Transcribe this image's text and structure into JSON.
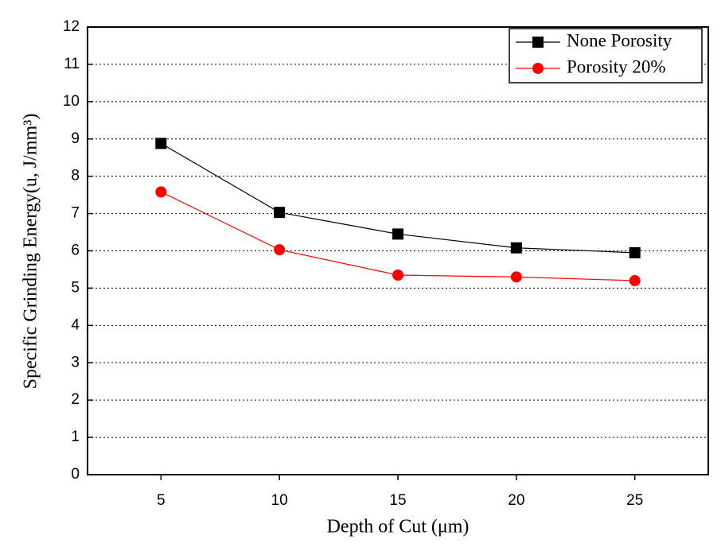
{
  "chart_data": {
    "type": "line",
    "x": [
      5,
      10,
      15,
      20,
      25
    ],
    "series": [
      {
        "name": "None Porosity",
        "color": "#000000",
        "marker": "square",
        "values": [
          8.88,
          7.03,
          6.45,
          6.08,
          5.95
        ]
      },
      {
        "name": "Porosity 20%",
        "color": "#ff0000",
        "marker": "circle",
        "values": [
          7.58,
          6.03,
          5.35,
          5.3,
          5.2
        ]
      }
    ],
    "xlabel": "Depth of Cut (μm)",
    "ylabel": "Specific Grinding Energy(u, J/mm³)",
    "xlim": [
      1.9,
      28.1
    ],
    "xticks": [
      5,
      10,
      15,
      20,
      25
    ],
    "ylim": [
      0,
      12
    ],
    "yticks": [
      0,
      1,
      2,
      3,
      4,
      5,
      6,
      7,
      8,
      9,
      10,
      11,
      12
    ],
    "grid": true,
    "legend": "upper right"
  }
}
